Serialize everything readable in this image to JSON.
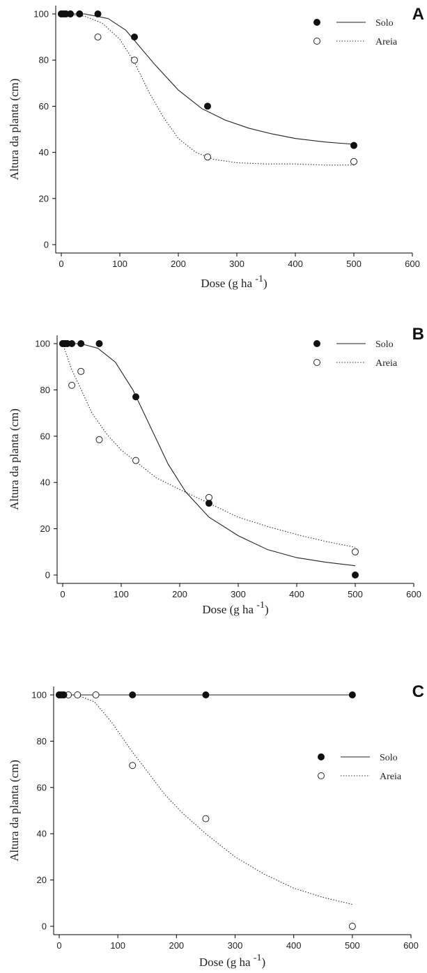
{
  "chart_data": [
    {
      "type": "scatter",
      "panel": "A",
      "xlabel": "Dose (g ha ",
      "xlabel_sup": "-1",
      "xlabel_end": ")",
      "ylabel": "Altura da planta (cm)",
      "xlim": [
        0,
        600
      ],
      "ylim": [
        0,
        100
      ],
      "xticks": [
        0,
        100,
        200,
        300,
        400,
        500,
        600
      ],
      "yticks": [
        0,
        20,
        40,
        60,
        80,
        100
      ],
      "legend_position": "top-right",
      "series": [
        {
          "name": "Solo",
          "marker": "filled-circle",
          "line": "solid",
          "points": [
            [
              0,
              100
            ],
            [
              3.9,
              100
            ],
            [
              7.8,
              100
            ],
            [
              15.6,
              100
            ],
            [
              31.2,
              100
            ],
            [
              62.5,
              100
            ],
            [
              125,
              90
            ],
            [
              250,
              60
            ],
            [
              500,
              43
            ]
          ],
          "fit": [
            [
              0,
              100
            ],
            [
              40,
              100
            ],
            [
              80,
              98
            ],
            [
              110,
              93
            ],
            [
              130,
              87
            ],
            [
              160,
              78
            ],
            [
              200,
              67
            ],
            [
              240,
              59
            ],
            [
              280,
              54
            ],
            [
              320,
              50.5
            ],
            [
              360,
              48
            ],
            [
              400,
              46
            ],
            [
              450,
              44.5
            ],
            [
              500,
              43.5
            ]
          ]
        },
        {
          "name": "Areia",
          "marker": "open-circle",
          "line": "dotted",
          "points": [
            [
              0,
              100
            ],
            [
              3.9,
              100
            ],
            [
              7.8,
              100
            ],
            [
              15.6,
              100
            ],
            [
              31.2,
              100
            ],
            [
              62.5,
              90
            ],
            [
              125,
              80
            ],
            [
              250,
              38
            ],
            [
              500,
              36
            ]
          ],
          "fit": [
            [
              0,
              100
            ],
            [
              40,
              99
            ],
            [
              70,
              96
            ],
            [
              100,
              89
            ],
            [
              125,
              79
            ],
            [
              150,
              66
            ],
            [
              175,
              55
            ],
            [
              200,
              46
            ],
            [
              230,
              40
            ],
            [
              260,
              37
            ],
            [
              300,
              35.5
            ],
            [
              350,
              35
            ],
            [
              400,
              35
            ],
            [
              450,
              34.5
            ],
            [
              500,
              34.5
            ]
          ]
        }
      ]
    },
    {
      "type": "scatter",
      "panel": "B",
      "xlabel": "Dose (g ha ",
      "xlabel_sup": "-1",
      "xlabel_end": ")",
      "ylabel": "Altura da planta (cm)",
      "xlim": [
        0,
        600
      ],
      "ylim": [
        0,
        100
      ],
      "xticks": [
        0,
        100,
        200,
        300,
        400,
        500,
        600
      ],
      "yticks": [
        0,
        20,
        40,
        60,
        80,
        100
      ],
      "legend_position": "top-right",
      "series": [
        {
          "name": "Solo",
          "marker": "filled-circle",
          "line": "solid",
          "points": [
            [
              0,
              100
            ],
            [
              3.9,
              100
            ],
            [
              7.8,
              100
            ],
            [
              15.6,
              100
            ],
            [
              31.2,
              100
            ],
            [
              62.5,
              100
            ],
            [
              125,
              77
            ],
            [
              250,
              31
            ],
            [
              500,
              0
            ]
          ],
          "fit": [
            [
              0,
              100
            ],
            [
              30,
              100
            ],
            [
              60,
              98
            ],
            [
              90,
              92
            ],
            [
              120,
              80
            ],
            [
              150,
              64
            ],
            [
              180,
              48
            ],
            [
              210,
              36
            ],
            [
              250,
              25
            ],
            [
              300,
              17
            ],
            [
              350,
              11
            ],
            [
              400,
              7.5
            ],
            [
              450,
              5.5
            ],
            [
              500,
              4
            ]
          ]
        },
        {
          "name": "Areia",
          "marker": "open-circle",
          "line": "dotted",
          "points": [
            [
              0,
              100
            ],
            [
              3.9,
              100
            ],
            [
              7.8,
              100
            ],
            [
              15.6,
              82
            ],
            [
              31.2,
              88
            ],
            [
              62.5,
              58.5
            ],
            [
              125,
              49.5
            ],
            [
              250,
              33.5
            ],
            [
              500,
              10
            ]
          ],
          "fit": [
            [
              0,
              100
            ],
            [
              15,
              89
            ],
            [
              30,
              81
            ],
            [
              50,
              70
            ],
            [
              75,
              61
            ],
            [
              100,
              54
            ],
            [
              125,
              49
            ],
            [
              160,
              42
            ],
            [
              200,
              37
            ],
            [
              250,
              31
            ],
            [
              300,
              25
            ],
            [
              350,
              21
            ],
            [
              400,
              17.5
            ],
            [
              450,
              14.5
            ],
            [
              500,
              12
            ]
          ]
        }
      ]
    },
    {
      "type": "scatter",
      "panel": "C",
      "xlabel": "Dose (g ha ",
      "xlabel_sup": "-1",
      "xlabel_end": ")",
      "ylabel": "Altura da planta (cm)",
      "xlim": [
        0,
        600
      ],
      "ylim": [
        0,
        100
      ],
      "xticks": [
        0,
        100,
        200,
        300,
        400,
        500,
        600
      ],
      "yticks": [
        0,
        20,
        40,
        60,
        80,
        100
      ],
      "legend_position": "right",
      "series": [
        {
          "name": "Solo",
          "marker": "filled-circle",
          "line": "solid",
          "points": [
            [
              0,
              100
            ],
            [
              3.9,
              100
            ],
            [
              7.8,
              100
            ],
            [
              125,
              100
            ],
            [
              250,
              100
            ],
            [
              500,
              100
            ]
          ],
          "fit": [
            [
              0,
              100
            ],
            [
              500,
              100
            ]
          ]
        },
        {
          "name": "Areia",
          "marker": "open-circle",
          "line": "dotted",
          "points": [
            [
              0,
              100
            ],
            [
              3.9,
              100
            ],
            [
              7.8,
              100
            ],
            [
              15.6,
              100
            ],
            [
              31.2,
              100
            ],
            [
              62.5,
              100
            ],
            [
              125,
              69.5
            ],
            [
              250,
              46.5
            ],
            [
              500,
              0
            ]
          ],
          "fit": [
            [
              0,
              100
            ],
            [
              30,
              100
            ],
            [
              60,
              97
            ],
            [
              90,
              88
            ],
            [
              120,
              77
            ],
            [
              150,
              67
            ],
            [
              180,
              57
            ],
            [
              210,
              49
            ],
            [
              250,
              40
            ],
            [
              300,
              30
            ],
            [
              350,
              22.5
            ],
            [
              400,
              16.5
            ],
            [
              450,
              12.5
            ],
            [
              500,
              9.5
            ]
          ]
        }
      ]
    }
  ]
}
